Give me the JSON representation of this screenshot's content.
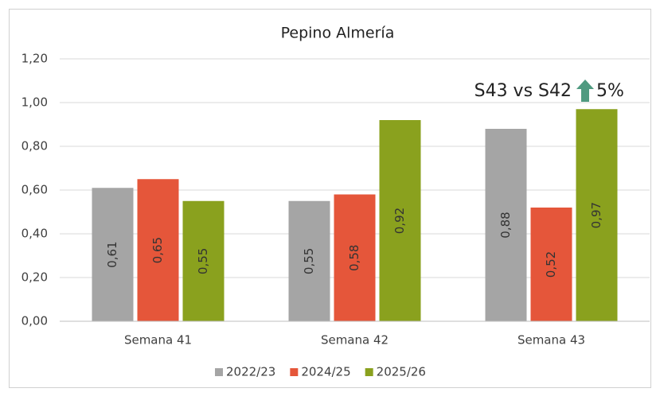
{
  "chart_data": {
    "type": "bar",
    "title": "Pepino Almería",
    "categories": [
      "Semana 41",
      "Semana 42",
      "Semana 43"
    ],
    "series": [
      {
        "name": "2022/23",
        "color": "#a5a5a5",
        "values": [
          0.61,
          0.55,
          0.88
        ],
        "value_labels": [
          "0,61",
          "0,55",
          "0,88"
        ]
      },
      {
        "name": "2024/25",
        "color": "#e5563a",
        "values": [
          0.65,
          0.58,
          0.52
        ],
        "value_labels": [
          "0,65",
          "0,58",
          "0,52"
        ]
      },
      {
        "name": "2025/26",
        "color": "#8aa11e",
        "values": [
          0.55,
          0.92,
          0.97
        ],
        "value_labels": [
          "0,55",
          "0,92",
          "0,97"
        ]
      }
    ],
    "ylim": [
      0,
      1.2
    ],
    "yticks": [
      {
        "value": 0,
        "label": "0,00"
      },
      {
        "value": 0.2,
        "label": "0,20"
      },
      {
        "value": 0.4,
        "label": "0,40"
      },
      {
        "value": 0.6,
        "label": "0,60"
      },
      {
        "value": 0.8,
        "label": "0,80"
      },
      {
        "value": 1.0,
        "label": "1,00"
      },
      {
        "value": 1.2,
        "label": "1,20"
      }
    ],
    "grid": true,
    "legend": "bottom",
    "annotation": {
      "text": "S43 vs S42",
      "change": "5%"
    }
  }
}
